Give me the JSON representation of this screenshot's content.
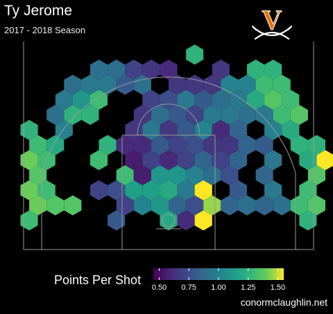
{
  "header": {
    "title": "Ty Jerome",
    "subtitle": "2017 - 2018 Season",
    "logo_letter": "V",
    "logo_color": "#e57200"
  },
  "footer": {
    "credit": "conormclaughlin.net"
  },
  "chart_data": {
    "type": "heatmap",
    "title": "Ty Jerome",
    "subtitle": "2017 - 2018 Season",
    "background": "#000000",
    "colorbar": {
      "label": "Points Per Shot",
      "min": 0.45,
      "max": 1.55,
      "ticks": [
        0.5,
        0.75,
        1.0,
        1.25,
        1.5
      ],
      "tick_labels": [
        "0.50",
        "0.75",
        "1.00",
        "1.25",
        "1.50"
      ],
      "colormap": "viridis"
    },
    "grid": "hexbin",
    "bins": [
      {
        "col": -8,
        "row": 1,
        "v": 1.4
      },
      {
        "col": -8,
        "row": 2,
        "v": 1.4
      },
      {
        "col": -8,
        "row": 3,
        "v": 1.35
      },
      {
        "col": -8,
        "row": 4,
        "v": 1.4
      },
      {
        "col": -8,
        "row": 5,
        "v": 1.3
      },
      {
        "col": -8,
        "row": 6,
        "v": 1.25
      },
      {
        "col": -8,
        "row": 0,
        "v": 1.3
      },
      {
        "col": -7,
        "row": 1,
        "v": 1.35
      },
      {
        "col": -7,
        "row": 2,
        "v": 1.3
      },
      {
        "col": -7,
        "row": 4,
        "v": 1.3
      },
      {
        "col": -7,
        "row": 5,
        "v": 1.2
      },
      {
        "col": -7,
        "row": 7,
        "v": 0.9
      },
      {
        "col": -6,
        "row": 1,
        "v": 1.35
      },
      {
        "col": -6,
        "row": 6,
        "v": 1.0
      },
      {
        "col": -6,
        "row": 7,
        "v": 1.25
      },
      {
        "col": -6,
        "row": 8,
        "v": 0.95
      },
      {
        "col": -6,
        "row": 9,
        "v": 0.9
      },
      {
        "col": -5,
        "row": 7,
        "v": 1.25
      },
      {
        "col": -5,
        "row": 8,
        "v": 1.1
      },
      {
        "col": -5,
        "row": 9,
        "v": 0.95
      },
      {
        "col": -4,
        "row": 2,
        "v": 0.7
      },
      {
        "col": -4,
        "row": 4,
        "v": 1.3
      },
      {
        "col": -4,
        "row": 5,
        "v": 1.25
      },
      {
        "col": -4,
        "row": 8,
        "v": 1.3
      },
      {
        "col": -4,
        "row": 9,
        "v": 0.95
      },
      {
        "col": -4,
        "row": 10,
        "v": 0.9
      },
      {
        "col": -3,
        "row": 0,
        "v": 0.8
      },
      {
        "col": -3,
        "row": 1,
        "v": 0.7
      },
      {
        "col": -3,
        "row": 2,
        "v": 0.75
      },
      {
        "col": -3,
        "row": 3,
        "v": 1.3
      },
      {
        "col": -3,
        "row": 5,
        "v": 0.6
      },
      {
        "col": -3,
        "row": 9,
        "v": 0.8
      },
      {
        "col": -3,
        "row": 10,
        "v": 0.9
      },
      {
        "col": -2,
        "row": 1,
        "v": 1.0
      },
      {
        "col": -2,
        "row": 2,
        "v": 1.15
      },
      {
        "col": -2,
        "row": 3,
        "v": 0.55
      },
      {
        "col": -2,
        "row": 4,
        "v": 0.55
      },
      {
        "col": -2,
        "row": 5,
        "v": 0.6
      },
      {
        "col": -2,
        "row": 6,
        "v": 0.65
      },
      {
        "col": -2,
        "row": 7,
        "v": 0.65
      },
      {
        "col": -2,
        "row": 9,
        "v": 0.9
      },
      {
        "col": -2,
        "row": 10,
        "v": 0.7
      },
      {
        "col": -1,
        "row": 1,
        "v": 1.1
      },
      {
        "col": -1,
        "row": 2,
        "v": 1.15
      },
      {
        "col": -1,
        "row": 3,
        "v": 1.1
      },
      {
        "col": -1,
        "row": 4,
        "v": 0.7
      },
      {
        "col": -1,
        "row": 5,
        "v": 0.8
      },
      {
        "col": -1,
        "row": 6,
        "v": 0.95
      },
      {
        "col": -1,
        "row": 7,
        "v": 0.9
      },
      {
        "col": -1,
        "row": 8,
        "v": 0.7
      },
      {
        "col": -1,
        "row": 10,
        "v": 0.65
      },
      {
        "col": 0,
        "row": 0,
        "v": 1.2
      },
      {
        "col": 0,
        "row": 1,
        "v": 0.85
      },
      {
        "col": 0,
        "row": 2,
        "v": 1.2
      },
      {
        "col": 0,
        "row": 3,
        "v": 1.1
      },
      {
        "col": 0,
        "row": 4,
        "v": 0.6
      },
      {
        "col": 0,
        "row": 5,
        "v": 0.7
      },
      {
        "col": 0,
        "row": 6,
        "v": 0.65
      },
      {
        "col": 0,
        "row": 7,
        "v": 0.8
      },
      {
        "col": 0,
        "row": 8,
        "v": 0.75
      },
      {
        "col": 0,
        "row": 9,
        "v": 0.65
      },
      {
        "col": 0,
        "row": 10,
        "v": 0.6
      },
      {
        "col": 1,
        "row": 0,
        "v": 0.6
      },
      {
        "col": 1,
        "row": 1,
        "v": 0.75
      },
      {
        "col": 1,
        "row": 2,
        "v": 0.95
      },
      {
        "col": 1,
        "row": 3,
        "v": 1.0
      },
      {
        "col": 1,
        "row": 4,
        "v": 0.7
      },
      {
        "col": 1,
        "row": 5,
        "v": 0.75
      },
      {
        "col": 1,
        "row": 6,
        "v": 0.8
      },
      {
        "col": 1,
        "row": 7,
        "v": 0.7
      },
      {
        "col": 1,
        "row": 8,
        "v": 0.95
      },
      {
        "col": 1,
        "row": 9,
        "v": 0.65
      },
      {
        "col": 1,
        "row": 11,
        "v": 1.25
      },
      {
        "col": 2,
        "row": 0,
        "v": 1.55
      },
      {
        "col": 2,
        "row": 1,
        "v": 1.45
      },
      {
        "col": 2,
        "row": 2,
        "v": 1.55
      },
      {
        "col": 2,
        "row": 3,
        "v": 0.9
      },
      {
        "col": 2,
        "row": 4,
        "v": 0.85
      },
      {
        "col": 2,
        "row": 5,
        "v": 0.65
      },
      {
        "col": 2,
        "row": 6,
        "v": 1.0
      },
      {
        "col": 2,
        "row": 7,
        "v": 0.95
      },
      {
        "col": 2,
        "row": 8,
        "v": 0.8
      },
      {
        "col": 2,
        "row": 9,
        "v": 0.65
      },
      {
        "col": 3,
        "row": 1,
        "v": 0.85
      },
      {
        "col": 3,
        "row": 3,
        "v": 0.75
      },
      {
        "col": 3,
        "row": 4,
        "v": 0.7
      },
      {
        "col": 3,
        "row": 5,
        "v": 0.65
      },
      {
        "col": 3,
        "row": 6,
        "v": 0.6
      },
      {
        "col": 3,
        "row": 7,
        "v": 0.95
      },
      {
        "col": 3,
        "row": 8,
        "v": 0.9
      },
      {
        "col": 3,
        "row": 9,
        "v": 1.0
      },
      {
        "col": 3,
        "row": 10,
        "v": 0.65
      },
      {
        "col": 4,
        "row": 1,
        "v": 0.9
      },
      {
        "col": 4,
        "row": 2,
        "v": 0.8
      },
      {
        "col": 4,
        "row": 4,
        "v": 0.85
      },
      {
        "col": 4,
        "row": 5,
        "v": 0.85
      },
      {
        "col": 4,
        "row": 6,
        "v": 0.85
      },
      {
        "col": 4,
        "row": 7,
        "v": 0.9
      },
      {
        "col": 4,
        "row": 8,
        "v": 0.95
      },
      {
        "col": 4,
        "row": 9,
        "v": 1.0
      },
      {
        "col": 5,
        "row": 1,
        "v": 0.85
      },
      {
        "col": 5,
        "row": 3,
        "v": 0.85
      },
      {
        "col": 5,
        "row": 5,
        "v": 0.8
      },
      {
        "col": 5,
        "row": 7,
        "v": 0.95
      },
      {
        "col": 5,
        "row": 8,
        "v": 1.2
      },
      {
        "col": 5,
        "row": 9,
        "v": 1.3
      },
      {
        "col": 5,
        "row": 10,
        "v": 1.25
      },
      {
        "col": 6,
        "row": 1,
        "v": 0.9
      },
      {
        "col": 6,
        "row": 2,
        "v": 0.95
      },
      {
        "col": 6,
        "row": 4,
        "v": 0.95
      },
      {
        "col": 6,
        "row": 6,
        "v": 1.0
      },
      {
        "col": 6,
        "row": 7,
        "v": 1.3
      },
      {
        "col": 6,
        "row": 8,
        "v": 1.35
      },
      {
        "col": 6,
        "row": 9,
        "v": 1.3
      },
      {
        "col": 6,
        "row": 10,
        "v": 1.25
      },
      {
        "col": 7,
        "row": 1,
        "v": 1.3
      },
      {
        "col": 7,
        "row": 5,
        "v": 1.25
      },
      {
        "col": 7,
        "row": 6,
        "v": 1.2
      },
      {
        "col": 7,
        "row": 7,
        "v": 1.35
      },
      {
        "col": 7,
        "row": 8,
        "v": 1.3
      },
      {
        "col": 8,
        "row": 0,
        "v": 1.25
      },
      {
        "col": 8,
        "row": 1,
        "v": 1.35
      },
      {
        "col": 8,
        "row": 2,
        "v": 1.3
      },
      {
        "col": 8,
        "row": 3,
        "v": 1.35
      },
      {
        "col": 8,
        "row": 4,
        "v": 1.2
      },
      {
        "col": 8,
        "row": 5,
        "v": 1.25
      },
      {
        "col": 9,
        "row": 4,
        "v": 1.55
      }
    ]
  }
}
